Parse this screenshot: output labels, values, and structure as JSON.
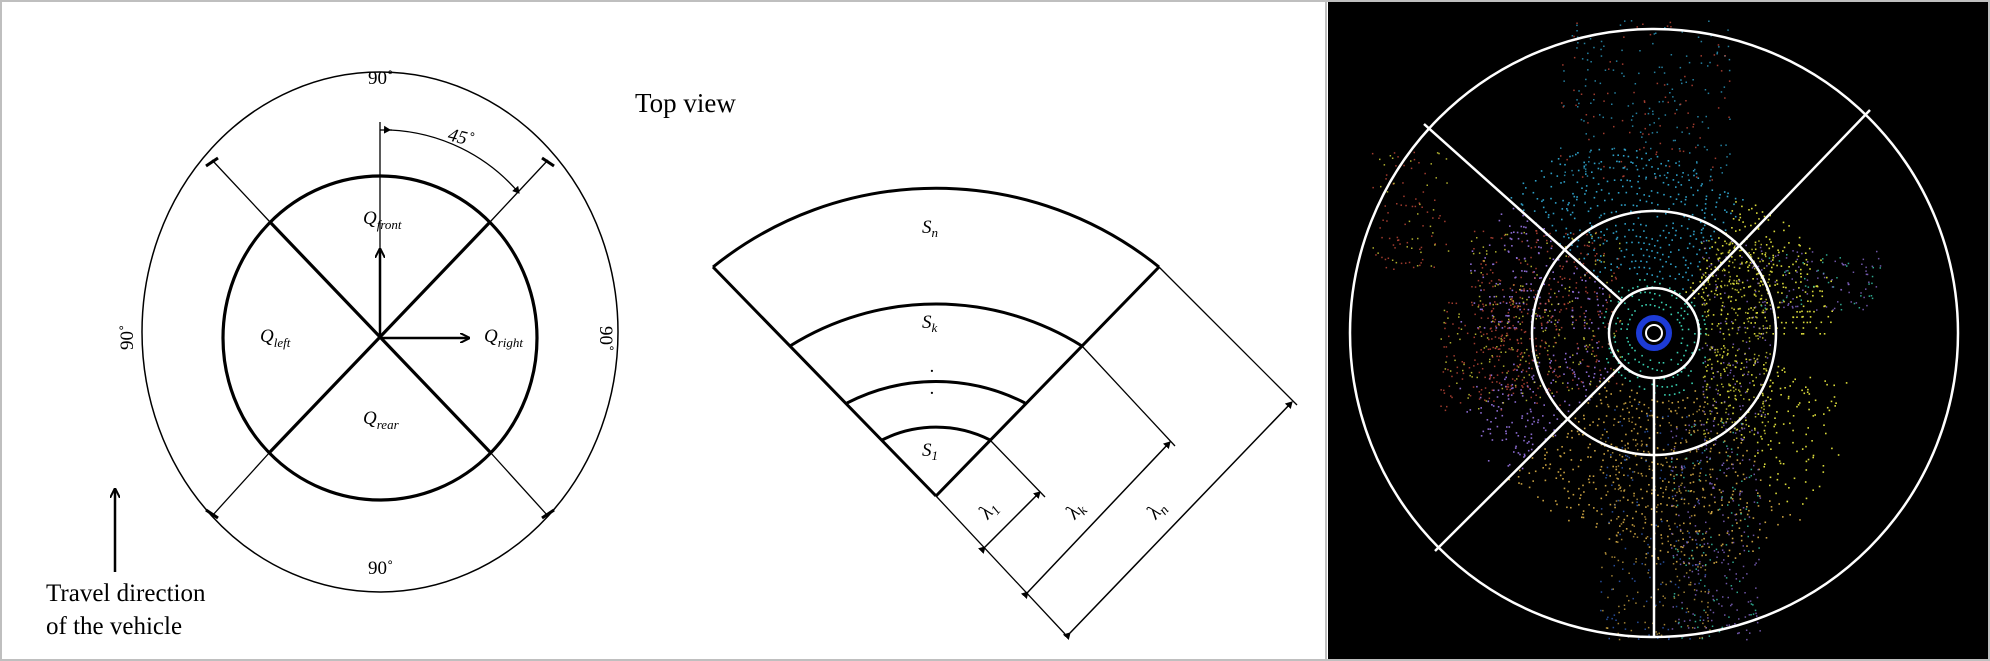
{
  "left_panel": {
    "heading": "Top view",
    "angle_top": "90˚",
    "angle_bottom": "90˚",
    "angle_left": "90˚",
    "angle_right": "90˚",
    "angle_half": "45˚",
    "quadrants": {
      "front": {
        "base": "Q",
        "sub": "front"
      },
      "left": {
        "base": "Q",
        "sub": "left"
      },
      "right": {
        "base": "Q",
        "sub": "right"
      },
      "rear": {
        "base": "Q",
        "sub": "rear"
      }
    },
    "travel_line1": "Travel direction",
    "travel_line2": "of the vehicle"
  },
  "middle_panel": {
    "segments": {
      "n": {
        "base": "S",
        "sub": "n"
      },
      "k": {
        "base": "S",
        "sub": "k"
      },
      "first": {
        "base": "S",
        "sub": "1"
      }
    },
    "dots": ".",
    "widths": {
      "first": {
        "base": "λ",
        "sub": "1"
      },
      "k": {
        "base": "λ",
        "sub": "k"
      },
      "n": {
        "base": "λ",
        "sub": "n"
      }
    }
  },
  "right_panel": {
    "background": "#000000",
    "overlay_color": "#ffffff",
    "point_colors": [
      "#2ea0c8",
      "#c84a3a",
      "#d9d93a",
      "#8a6ad0",
      "#3ad0b0",
      "#c8a040",
      "#3060c0"
    ]
  }
}
